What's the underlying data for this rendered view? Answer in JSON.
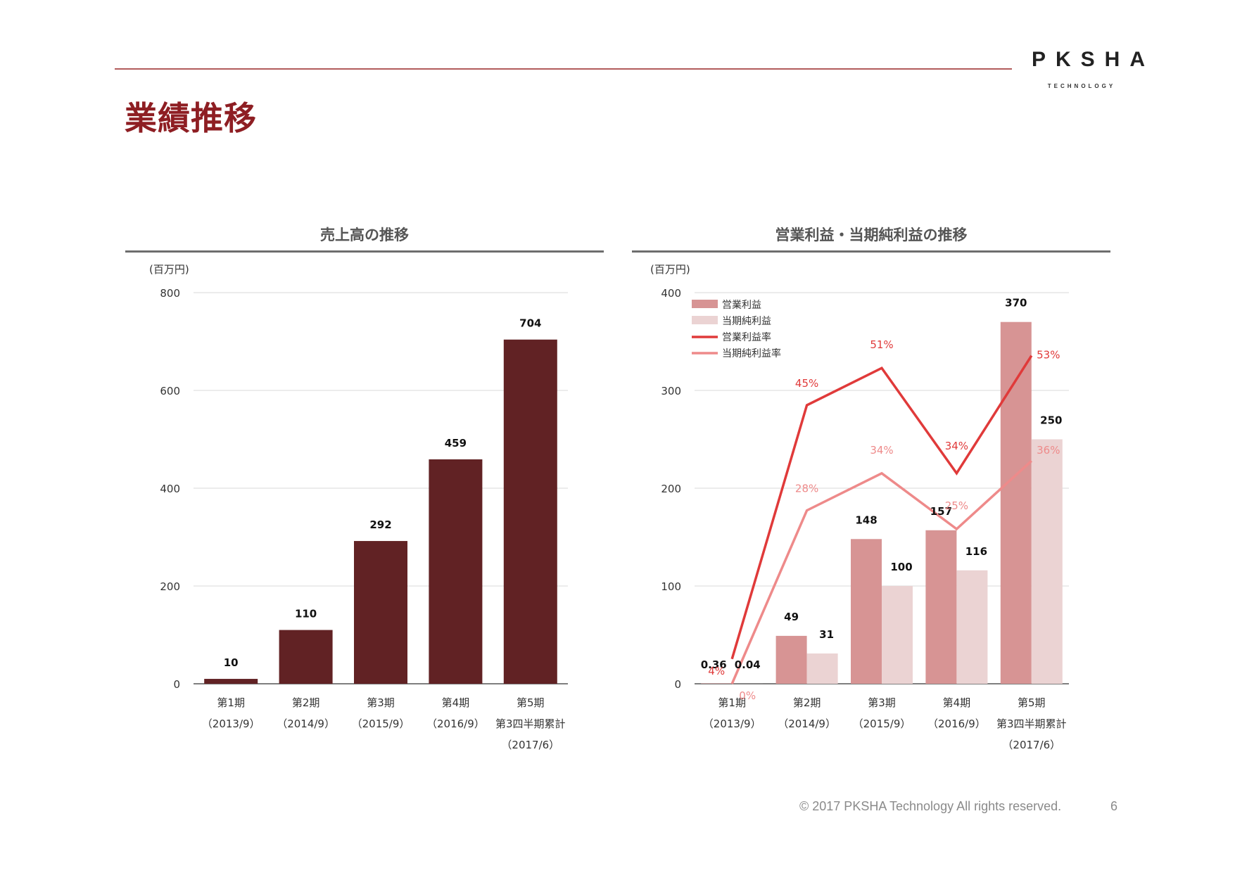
{
  "logo": {
    "name": "PKSHA",
    "sub": "TECHNOLOGY"
  },
  "page": {
    "title": "業績推移",
    "footer": "© 2017 PKSHA Technology All rights reserved.",
    "number": "6"
  },
  "colors": {
    "title": "#8e1e23",
    "sales_bar": "#612224",
    "op_bar": "#d79494",
    "net_bar": "#ebd3d3",
    "op_rate": "#e03a3a",
    "net_rate": "#ee8a8a"
  },
  "chart_data": [
    {
      "type": "bar",
      "title": "売上高の推移",
      "ylabel": "(百万円)",
      "ylim": [
        0,
        800
      ],
      "yticks": [
        0,
        200,
        400,
        600,
        800
      ],
      "categories": [
        "第1期",
        "第2期",
        "第3期",
        "第4期",
        "第5期"
      ],
      "category_sublabels": [
        [
          "（2013/9）"
        ],
        [
          "（2014/9）"
        ],
        [
          "（2015/9）"
        ],
        [
          "（2016/9）"
        ],
        [
          "第3四半期累計",
          "（2017/6）"
        ]
      ],
      "values": [
        10,
        110,
        292,
        459,
        704
      ],
      "grid": true
    },
    {
      "type": "bar",
      "title": "営業利益・当期純利益の推移",
      "ylabel": "(百万円)",
      "ylim": [
        0,
        400
      ],
      "yticks": [
        0,
        100,
        200,
        300,
        400
      ],
      "categories": [
        "第1期",
        "第2期",
        "第3期",
        "第4期",
        "第5期"
      ],
      "category_sublabels": [
        [
          "（2013/9）"
        ],
        [
          "（2014/9）"
        ],
        [
          "（2015/9）"
        ],
        [
          "（2016/9）"
        ],
        [
          "第3四半期累計",
          "（2017/6）"
        ]
      ],
      "series": [
        {
          "name": "営業利益",
          "kind": "bar",
          "values": [
            0.36,
            49,
            148,
            157,
            370
          ],
          "labels": [
            "0.36",
            "49",
            "148",
            "157",
            "370"
          ]
        },
        {
          "name": "当期純利益",
          "kind": "bar",
          "values": [
            0.04,
            31,
            100,
            116,
            250
          ],
          "labels": [
            "0.04",
            "31",
            "100",
            "116",
            "250"
          ]
        },
        {
          "name": "営業利益率",
          "kind": "line",
          "values": [
            4,
            45,
            51,
            34,
            53
          ],
          "labels": [
            "4%",
            "45%",
            "51%",
            "34%",
            "53%"
          ]
        },
        {
          "name": "当期純利益率",
          "kind": "line",
          "values": [
            0,
            28,
            34,
            25,
            36
          ],
          "labels": [
            "0%",
            "28%",
            "34%",
            "25%",
            "36%"
          ]
        }
      ],
      "legend_position": "top-left",
      "grid": true
    }
  ]
}
